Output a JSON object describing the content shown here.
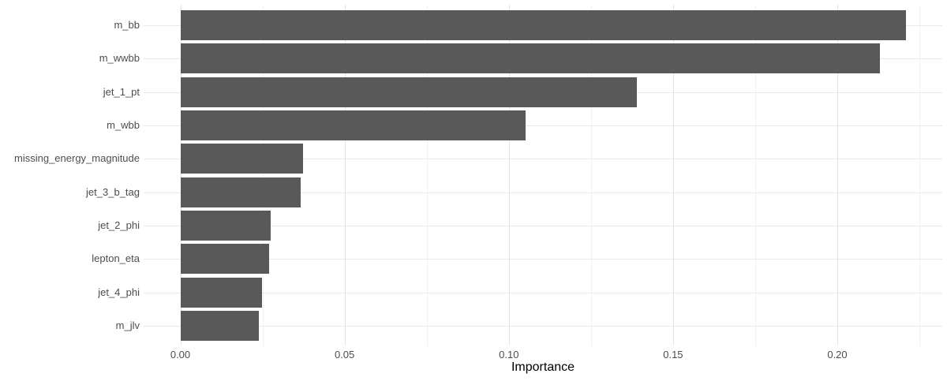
{
  "chart_data": {
    "type": "bar",
    "orientation": "horizontal",
    "title": "",
    "xlabel": "Importance",
    "ylabel": "",
    "categories": [
      "m_bb",
      "m_wwbb",
      "jet_1_pt",
      "m_wbb",
      "missing_energy_magnitude",
      "jet_3_b_tag",
      "jet_2_phi",
      "lepton_eta",
      "jet_4_phi",
      "m_jlv"
    ],
    "values": [
      0.221,
      0.213,
      0.139,
      0.105,
      0.0374,
      0.0366,
      0.0276,
      0.027,
      0.0249,
      0.024
    ],
    "xlim": [
      -0.0112,
      0.2319
    ],
    "x_major_ticks": [
      0,
      0.05,
      0.1,
      0.15,
      0.2
    ],
    "x_tick_labels": [
      "0.00",
      "0.05",
      "0.10",
      "0.15",
      "0.20"
    ],
    "x_minor_ticks": [
      0.025,
      0.075,
      0.125,
      0.175,
      0.225
    ],
    "grid": "major+minor",
    "legend_position": "none",
    "colors": {
      "bar_fill": "#595959",
      "background": "#FFFFFF",
      "grid_major": "#E3E3E3",
      "grid_minor": "#F1F1F1",
      "grid_horizontal": "#E9E9E9",
      "tick_label": "#4D4D4D",
      "axis_title": "#000000"
    }
  }
}
